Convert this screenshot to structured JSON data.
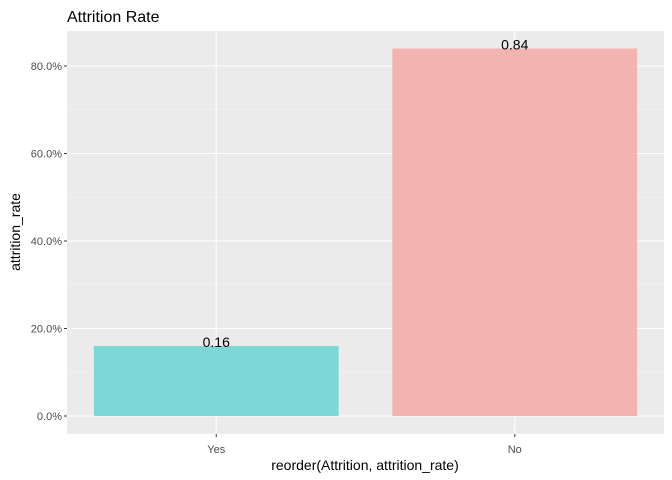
{
  "chart_data": {
    "type": "bar",
    "title": "Attrition Rate",
    "xlabel": "reorder(Attrition, attrition_rate)",
    "ylabel": "attrition_rate",
    "categories": [
      "Yes",
      "No"
    ],
    "values": [
      0.16,
      0.84
    ],
    "data_labels": [
      "0.16",
      "0.84"
    ],
    "colors": [
      "#76d6d6",
      "#f1b1ae"
    ],
    "ylim": [
      0,
      0.88
    ],
    "yticks": [
      0,
      0.2,
      0.4,
      0.6,
      0.8
    ],
    "ytick_labels": [
      "0.0%",
      "20.0%",
      "40.0%",
      "60.0%",
      "80.0%"
    ],
    "panel_background": "#ebebeb",
    "grid": true,
    "legend": "none"
  }
}
